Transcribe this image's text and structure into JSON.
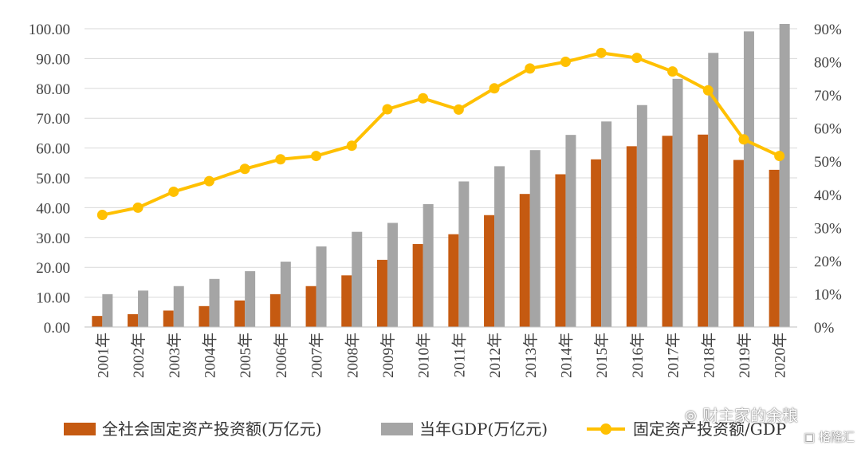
{
  "chart_data": {
    "type": "bar",
    "categories": [
      "2001年",
      "2002年",
      "2003年",
      "2004年",
      "2005年",
      "2006年",
      "2007年",
      "2008年",
      "2009年",
      "2010年",
      "2011年",
      "2012年",
      "2013年",
      "2014年",
      "2015年",
      "2016年",
      "2017年",
      "2018年",
      "2019年",
      "2020年"
    ],
    "series": [
      {
        "name": "全社会固定资产投资额(万亿元)",
        "kind": "bar",
        "axis": "left",
        "color": "#c55a11",
        "values": [
          3.7,
          4.3,
          5.5,
          7.0,
          8.9,
          11.0,
          13.7,
          17.3,
          22.5,
          27.8,
          31.1,
          37.5,
          44.6,
          51.2,
          56.2,
          60.6,
          64.1,
          64.5,
          56.0,
          52.7
        ]
      },
      {
        "name": "当年GDP(万亿元)",
        "kind": "bar",
        "axis": "left",
        "color": "#a5a5a5",
        "values": [
          11.0,
          12.2,
          13.7,
          16.1,
          18.7,
          21.9,
          27.0,
          31.9,
          34.9,
          41.2,
          48.8,
          53.9,
          59.3,
          64.4,
          68.9,
          74.4,
          83.2,
          91.9,
          99.1,
          101.6
        ]
      },
      {
        "name": "固定资产投资额/GDP",
        "kind": "line",
        "axis": "right",
        "color": "#ffc000",
        "values": [
          33.8,
          36.0,
          40.8,
          44.0,
          47.7,
          50.6,
          51.6,
          54.7,
          65.7,
          69.0,
          65.6,
          72.0,
          78.0,
          80.0,
          82.7,
          81.2,
          77.1,
          71.4,
          56.6,
          51.6
        ]
      }
    ],
    "y_left": {
      "min": 0,
      "max": 100,
      "step": 10,
      "tick_labels": [
        "0.00",
        "10.00",
        "20.00",
        "30.00",
        "40.00",
        "50.00",
        "60.00",
        "70.00",
        "80.00",
        "90.00",
        "100.00"
      ]
    },
    "y_right": {
      "min": 0,
      "max": 90,
      "step": 10,
      "tick_labels": [
        "0%",
        "10%",
        "20%",
        "30%",
        "40%",
        "50%",
        "60%",
        "70%",
        "80%",
        "90%"
      ]
    },
    "grid": true,
    "legend_position": "bottom",
    "xlabel": "",
    "ylabel": "",
    "title": ""
  },
  "watermark": {
    "account": "财主家的余粮",
    "brand": "格隆汇"
  }
}
